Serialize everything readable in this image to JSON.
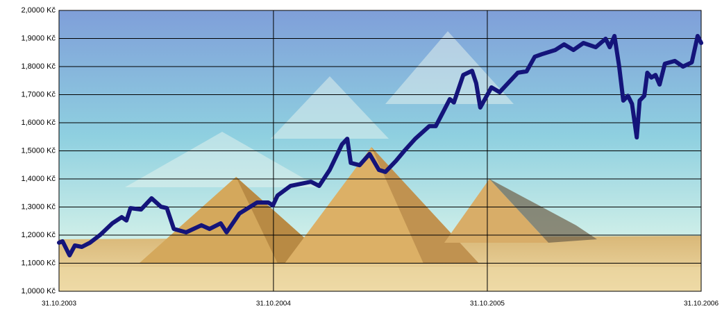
{
  "chart_data": {
    "type": "line",
    "x": [
      "2003-10-31",
      "2003-11-06",
      "2003-11-18",
      "2003-11-27",
      "2003-12-09",
      "2003-12-23",
      "2004-01-10",
      "2004-01-30",
      "2004-02-15",
      "2004-02-23",
      "2004-03-01",
      "2004-03-19",
      "2004-04-06",
      "2004-04-22",
      "2004-05-02",
      "2004-05-14",
      "2004-06-04",
      "2004-06-30",
      "2004-07-14",
      "2004-08-02",
      "2004-08-12",
      "2004-09-03",
      "2004-10-03",
      "2004-10-22",
      "2004-10-30",
      "2004-11-07",
      "2004-11-29",
      "2005-01-03",
      "2005-01-17",
      "2005-02-04",
      "2005-02-25",
      "2005-03-06",
      "2005-03-12",
      "2005-03-27",
      "2005-04-13",
      "2005-04-29",
      "2005-05-10",
      "2005-05-28",
      "2005-06-11",
      "2005-06-30",
      "2005-07-24",
      "2005-08-04",
      "2005-08-28",
      "2005-09-04",
      "2005-09-20",
      "2005-10-05",
      "2005-10-12",
      "2005-10-19",
      "2005-11-07",
      "2005-11-21",
      "2005-12-22",
      "2006-01-06",
      "2006-01-20",
      "2006-02-01",
      "2006-02-24",
      "2006-03-11",
      "2006-03-27",
      "2006-04-13",
      "2006-05-04",
      "2006-05-21",
      "2006-05-28",
      "2006-06-05",
      "2006-06-13",
      "2006-06-20",
      "2006-06-28",
      "2006-07-05",
      "2006-07-13",
      "2006-07-18",
      "2006-07-26",
      "2006-07-31",
      "2006-08-07",
      "2006-08-14",
      "2006-08-21",
      "2006-08-30",
      "2006-09-16",
      "2006-09-30",
      "2006-10-15",
      "2006-10-25",
      "2006-10-31"
    ],
    "series": [
      {
        "color": "#14147a",
        "values": [
          1.173,
          1.178,
          1.128,
          1.163,
          1.158,
          1.173,
          1.202,
          1.242,
          1.264,
          1.252,
          1.296,
          1.291,
          1.331,
          1.301,
          1.296,
          1.222,
          1.21,
          1.235,
          1.222,
          1.242,
          1.21,
          1.277,
          1.316,
          1.316,
          1.306,
          1.341,
          1.375,
          1.39,
          1.375,
          1.432,
          1.523,
          1.543,
          1.457,
          1.449,
          1.489,
          1.432,
          1.425,
          1.464,
          1.499,
          1.543,
          1.588,
          1.588,
          1.684,
          1.672,
          1.77,
          1.785,
          1.741,
          1.654,
          1.726,
          1.709,
          1.778,
          1.783,
          1.835,
          1.844,
          1.859,
          1.879,
          1.859,
          1.884,
          1.869,
          1.899,
          1.869,
          1.909,
          1.802,
          1.679,
          1.696,
          1.667,
          1.548,
          1.679,
          1.696,
          1.778,
          1.761,
          1.77,
          1.736,
          1.81,
          1.82,
          1.8,
          1.815,
          1.909,
          1.884
        ]
      }
    ],
    "xlim": [
      "2003-10-31",
      "2006-10-31"
    ],
    "xticks": [
      {
        "value": "2003-10-31",
        "label": "31.10.2003"
      },
      {
        "value": "2004-10-31",
        "label": "31.10.2004"
      },
      {
        "value": "2005-10-31",
        "label": "31.10.2005"
      },
      {
        "value": "2006-10-31",
        "label": "31.10.2006"
      }
    ],
    "ylim": [
      1,
      2
    ],
    "yticks": [
      {
        "value": 1,
        "label": "1,0000 Kč"
      },
      {
        "value": 1.1,
        "label": "1,1000 Kč"
      },
      {
        "value": 1.2,
        "label": "1,2000 Kč"
      },
      {
        "value": 1.3,
        "label": "1,3000 Kč"
      },
      {
        "value": 1.4,
        "label": "1,4000 Kč"
      },
      {
        "value": 1.5,
        "label": "1,5000 Kč"
      },
      {
        "value": 1.6,
        "label": "1,6000 Kč"
      },
      {
        "value": 1.7,
        "label": "1,7000 Kč"
      },
      {
        "value": 1.8,
        "label": "1,8000 Kč"
      },
      {
        "value": 1.9,
        "label": "1,9000 Kč"
      },
      {
        "value": 2,
        "label": "2,0000 Kč"
      }
    ],
    "grid": true
  }
}
